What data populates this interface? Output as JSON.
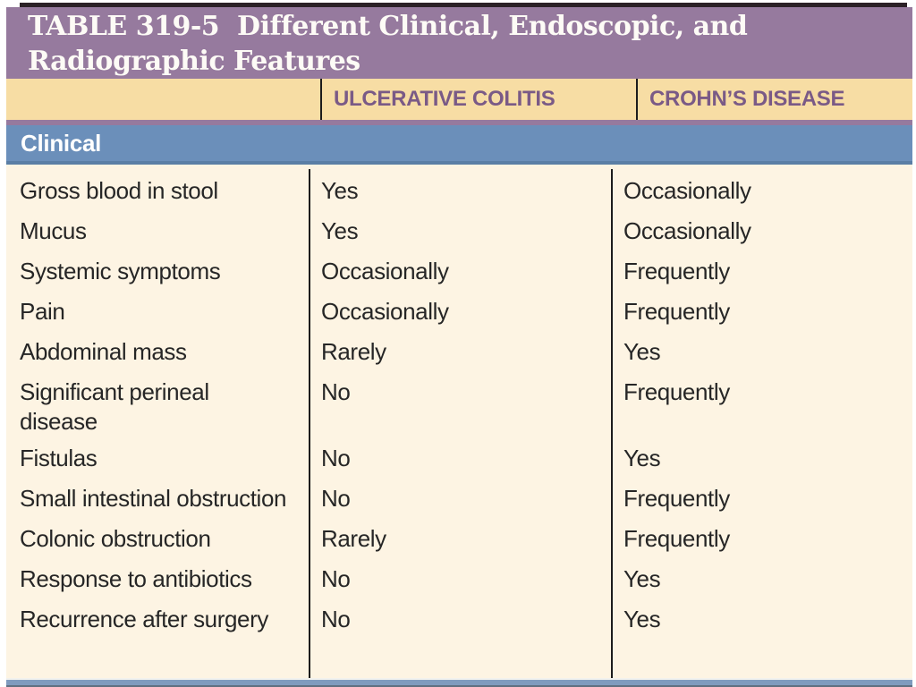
{
  "table": {
    "title": "TABLE 319-5  Different Clinical, Endoscopic, and Radiographic Features",
    "columns": [
      "",
      "ULCERATIVE COLITIS",
      "CROHN’S DISEASE"
    ],
    "section": "Clinical",
    "rows": [
      {
        "feature": "Gross blood in stool",
        "uc": "Yes",
        "cd": "Occasionally"
      },
      {
        "feature": "Mucus",
        "uc": "Yes",
        "cd": "Occasionally"
      },
      {
        "feature": "Systemic symptoms",
        "uc": "Occasionally",
        "cd": "Frequently"
      },
      {
        "feature": "Pain",
        "uc": "Occasionally",
        "cd": "Frequently"
      },
      {
        "feature": "Abdominal mass",
        "uc": "Rarely",
        "cd": "Yes"
      },
      {
        "feature": "Significant perineal disease",
        "uc": "No",
        "cd": "Frequently"
      },
      {
        "feature": "Fistulas",
        "uc": "No",
        "cd": "Yes"
      },
      {
        "feature": "Small intestinal obstruction",
        "uc": "No",
        "cd": "Frequently"
      },
      {
        "feature": "Colonic obstruction",
        "uc": "Rarely",
        "cd": "Frequently"
      },
      {
        "feature": "Response to antibiotics",
        "uc": "No",
        "cd": "Yes"
      },
      {
        "feature": "Recurrence after surgery",
        "uc": "No",
        "cd": "Yes"
      }
    ]
  },
  "colors": {
    "title_bg": "#967a9e",
    "header_bg": "#f7dda4",
    "header_text": "#7a5a86",
    "section_bg": "#6b8fba",
    "body_bg": "#fdf4e3",
    "divider": "#1c1c1c",
    "bottom_border": "#7f9bbe"
  }
}
